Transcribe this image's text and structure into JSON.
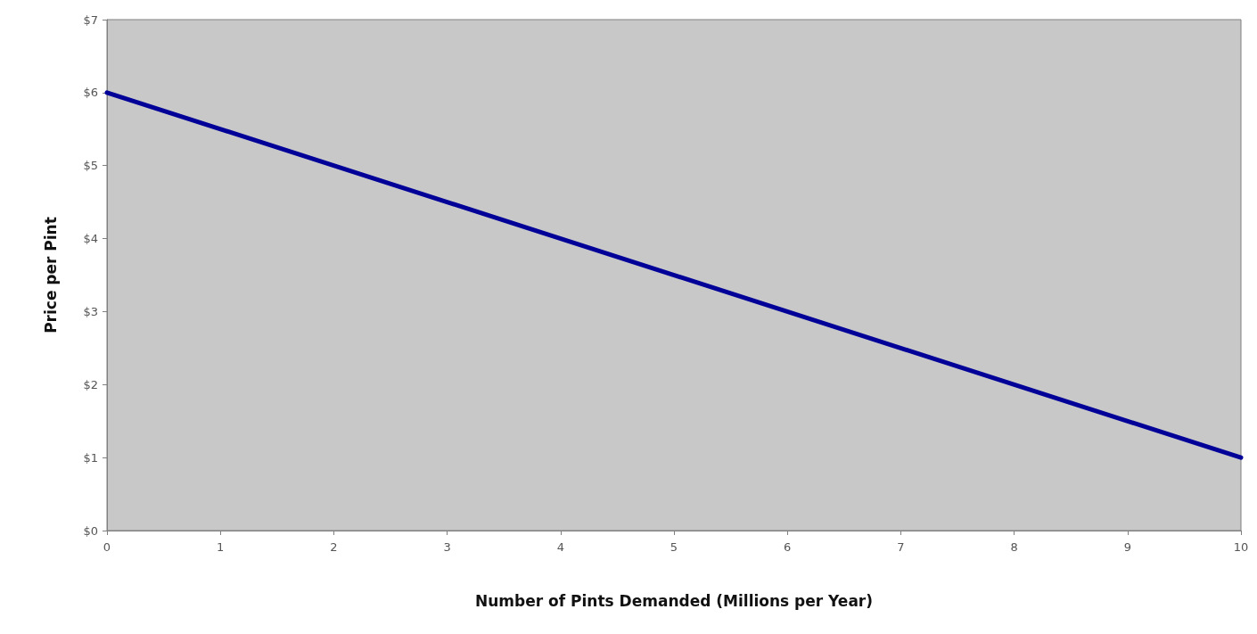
{
  "chart_data": {
    "type": "line",
    "xlabel": "Number of Pints Demanded (Millions per Year)",
    "ylabel": "Price per Pint",
    "x": [
      0,
      10
    ],
    "series": [
      {
        "color": "#000099",
        "values": [
          6,
          1
        ]
      }
    ],
    "xlim": [
      0,
      10
    ],
    "xticks": [
      0,
      1,
      2,
      3,
      4,
      5,
      6,
      7,
      8,
      9,
      10
    ],
    "ylim": [
      0,
      7
    ],
    "yticks": [
      {
        "value": 0,
        "label": "$0"
      },
      {
        "value": 1,
        "label": "$1"
      },
      {
        "value": 2,
        "label": "$2"
      },
      {
        "value": 3,
        "label": "$3"
      },
      {
        "value": 4,
        "label": "$4"
      },
      {
        "value": 5,
        "label": "$5"
      },
      {
        "value": 6,
        "label": "$6"
      },
      {
        "value": 7,
        "label": "$7"
      }
    ],
    "grid": false,
    "marker": "none",
    "line_style": "solid"
  }
}
